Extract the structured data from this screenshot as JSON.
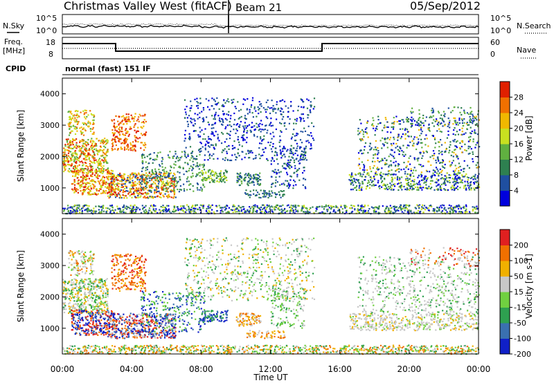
{
  "header": {
    "station": "Christmas Valley West (fitACF)",
    "beam": "Beam 21",
    "date": "05/Sep/2012"
  },
  "panels": {
    "nsky_label": "N.Sky",
    "nsearch_label": "N.Search",
    "noise_ticks": [
      "10^5",
      "10^0"
    ],
    "freq_label": "Freq.",
    "freq_unit": "[MHz]",
    "freq_ticks": [
      "18",
      "8"
    ],
    "nave_label": "Nave",
    "nave_ticks": [
      "60",
      "0"
    ],
    "cpid_label": "CPID",
    "cpid_text": "normal (fast) 151 IF"
  },
  "chart_data": [
    {
      "type": "heatmap",
      "name": "power",
      "ylabel": "Slant Range [km]",
      "yticks": [
        "1000",
        "2000",
        "3000",
        "4000"
      ],
      "ylim": [
        180,
        4500
      ],
      "xlim": [
        0,
        24
      ],
      "colorbar": {
        "label": "Power [dB]",
        "ticks": [
          "28",
          "24",
          "20",
          "16",
          "12",
          "8",
          "4"
        ],
        "colors": [
          "#0000dd",
          "#1f4fa0",
          "#2e8050",
          "#60b040",
          "#c8e020",
          "#f0b800",
          "#f07000",
          "#e02000"
        ]
      }
    },
    {
      "type": "heatmap",
      "name": "velocity",
      "ylabel": "Slant Range [km]",
      "yticks": [
        "1000",
        "2000",
        "3000",
        "4000"
      ],
      "ylim": [
        180,
        4500
      ],
      "xlim": [
        0,
        24
      ],
      "xlabel": "Time UT",
      "xticks": [
        "00:00",
        "04:00",
        "08:00",
        "12:00",
        "16:00",
        "20:00",
        "00:00"
      ],
      "colorbar": {
        "label": "Velocity [m s-1]",
        "ticks": [
          "200",
          "100",
          "50",
          "15",
          "-15",
          "-50",
          "-100",
          "-200"
        ],
        "colors": [
          "#1020c8",
          "#3a70b0",
          "#2ea050",
          "#70d040",
          "#c8c8c8",
          "#f0b000",
          "#f07000",
          "#e02020"
        ]
      }
    }
  ]
}
